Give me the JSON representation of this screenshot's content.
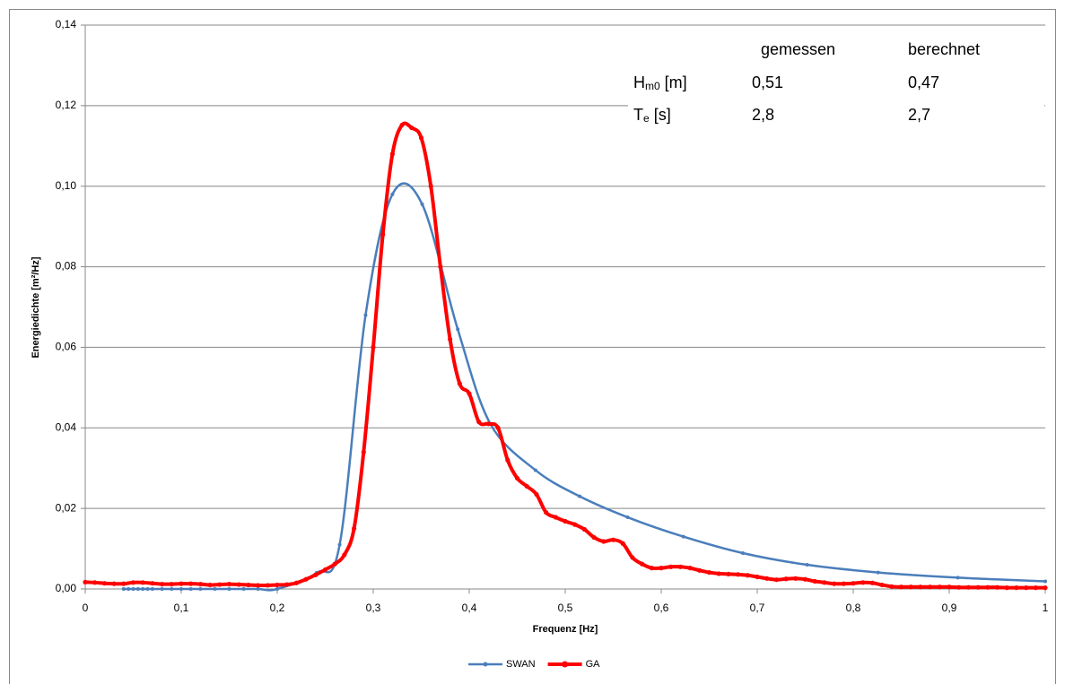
{
  "chart_data": {
    "type": "line",
    "smooth": true,
    "xlabel": "Frequenz [Hz]",
    "ylabel": "Energiedichte [m²/Hz]",
    "xlim": [
      0,
      1
    ],
    "ylim": [
      0,
      0.14
    ],
    "xticks": [
      0,
      {
        "value": 0.1,
        "label": "0,1"
      },
      {
        "value": 0.2,
        "label": "0,2"
      },
      {
        "value": 0.3,
        "label": "0,3"
      },
      {
        "value": 0.4,
        "label": "0,4"
      },
      {
        "value": 0.5,
        "label": "0,5"
      },
      {
        "value": 0.6,
        "label": "0,6"
      },
      {
        "value": 0.7,
        "label": "0,7"
      },
      {
        "value": 0.8,
        "label": "0,8"
      },
      {
        "value": 0.9,
        "label": "0,9"
      },
      1
    ],
    "yticks": [
      {
        "value": 0,
        "label": "0,00"
      },
      {
        "value": 0.02,
        "label": "0,02"
      },
      {
        "value": 0.04,
        "label": "0,04"
      },
      {
        "value": 0.06,
        "label": "0,06"
      },
      {
        "value": 0.08,
        "label": "0,08"
      },
      {
        "value": 0.1,
        "label": "0,10"
      },
      {
        "value": 0.12,
        "label": "0,12"
      },
      {
        "value": 0.14,
        "label": "0,14"
      }
    ],
    "grid": true,
    "legend": "bottom",
    "series": [
      {
        "name": "SWAN",
        "color": "#4a7ebb",
        "x": [
          0.04,
          0.045,
          0.05,
          0.055,
          0.06,
          0.065,
          0.07,
          0.08,
          0.09,
          0.1,
          0.11,
          0.12,
          0.135,
          0.15,
          0.165,
          0.18,
          0.2,
          0.241,
          0.265,
          0.292,
          0.32,
          0.351,
          0.388,
          0.422,
          0.469,
          0.515,
          0.565,
          0.623,
          0.685,
          0.752,
          0.826,
          0.909,
          1.0
        ],
        "values": [
          0,
          0,
          0,
          0,
          0,
          0,
          0,
          0,
          0,
          0,
          0,
          0,
          0,
          0,
          0,
          0,
          0,
          0.004,
          0.011,
          0.068,
          0.098,
          0.0955,
          0.0645,
          0.041,
          0.0295,
          0.023,
          0.0178,
          0.013,
          0.0089,
          0.006,
          0.0041,
          0.0028,
          0.0019
        ]
      },
      {
        "name": "GA",
        "color": "#ff0000",
        "x": [
          0,
          0.01,
          0.02,
          0.03,
          0.04,
          0.05,
          0.06,
          0.07,
          0.08,
          0.09,
          0.1,
          0.11,
          0.12,
          0.13,
          0.14,
          0.15,
          0.16,
          0.17,
          0.18,
          0.19,
          0.2,
          0.21,
          0.22,
          0.23,
          0.24,
          0.25,
          0.26,
          0.27,
          0.28,
          0.29,
          0.3,
          0.31,
          0.32,
          0.33,
          0.34,
          0.35,
          0.36,
          0.37,
          0.38,
          0.39,
          0.4,
          0.41,
          0.42,
          0.43,
          0.44,
          0.45,
          0.46,
          0.47,
          0.48,
          0.49,
          0.5,
          0.51,
          0.52,
          0.53,
          0.54,
          0.55,
          0.56,
          0.57,
          0.58,
          0.59,
          0.6,
          0.61,
          0.62,
          0.63,
          0.64,
          0.65,
          0.66,
          0.67,
          0.68,
          0.69,
          0.7,
          0.71,
          0.72,
          0.73,
          0.74,
          0.75,
          0.76,
          0.77,
          0.78,
          0.79,
          0.8,
          0.81,
          0.82,
          0.83,
          0.84,
          0.85,
          0.86,
          0.87,
          0.88,
          0.89,
          0.9,
          0.91,
          0.92,
          0.93,
          0.94,
          0.95,
          0.96,
          0.97,
          0.98,
          0.99,
          1.0
        ],
        "values": [
          0.0017,
          0.0016,
          0.0014,
          0.0013,
          0.0013,
          0.0016,
          0.0016,
          0.0014,
          0.0012,
          0.0012,
          0.0013,
          0.0013,
          0.0012,
          0.001,
          0.0011,
          0.0012,
          0.0011,
          0.001,
          0.0009,
          0.0009,
          0.001,
          0.0011,
          0.0015,
          0.0024,
          0.0035,
          0.0048,
          0.0062,
          0.0085,
          0.015,
          0.034,
          0.06,
          0.088,
          0.108,
          0.1152,
          0.1145,
          0.112,
          0.1,
          0.08,
          0.062,
          0.051,
          0.0485,
          0.0415,
          0.041,
          0.04,
          0.032,
          0.0275,
          0.0255,
          0.0235,
          0.019,
          0.0178,
          0.0168,
          0.016,
          0.0148,
          0.0128,
          0.0118,
          0.0122,
          0.0113,
          0.0078,
          0.0062,
          0.0052,
          0.0052,
          0.0055,
          0.0055,
          0.0052,
          0.0046,
          0.0041,
          0.0038,
          0.0037,
          0.0036,
          0.0034,
          0.003,
          0.0026,
          0.0023,
          0.0025,
          0.0026,
          0.0024,
          0.0019,
          0.0016,
          0.0013,
          0.0013,
          0.0014,
          0.0016,
          0.0015,
          0.001,
          0.0006,
          0.0005,
          0.0005,
          0.0005,
          0.0005,
          0.0005,
          0.0005,
          0.0004,
          0.0004,
          0.0004,
          0.0004,
          0.0004,
          0.0003,
          0.0003,
          0.0003,
          0.0003,
          0.0003
        ]
      }
    ],
    "annotation": {
      "headers": [
        "gemessen",
        "berechnet"
      ],
      "rows": [
        {
          "label": {
            "base": "H",
            "sub": "m0",
            "unit": " [m]"
          },
          "values": [
            "0,51",
            "0,47"
          ]
        },
        {
          "label": {
            "base": "T",
            "sub": "e",
            "unit": " [s]"
          },
          "values": [
            "2,8",
            "2,7"
          ]
        }
      ]
    }
  }
}
